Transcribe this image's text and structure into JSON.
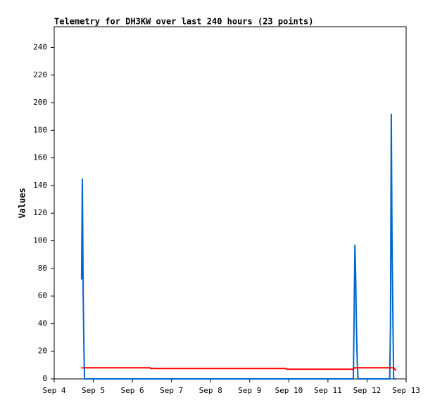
{
  "chart_data": {
    "type": "line",
    "title": "Telemetry for DH3KW over last 240 hours (23 points)",
    "y_label": "Values",
    "x": [
      4.7,
      4.72,
      4.74,
      4.755,
      4.775,
      6.45,
      6.47,
      9.93,
      9.95,
      11.65,
      11.67,
      11.69,
      11.71,
      11.73,
      11.75,
      11.77,
      12.58,
      12.6,
      12.62,
      12.64,
      12.66,
      12.68,
      12.74
    ],
    "series": [
      {
        "color": "#0066cc",
        "values": [
          72,
          145,
          64,
          32,
          0,
          0,
          0,
          0,
          0,
          0,
          48,
          97,
          73,
          36,
          12,
          0,
          0,
          40,
          192,
          96,
          48,
          0,
          0
        ]
      },
      {
        "color": "#ff0000",
        "values": [
          8,
          8,
          8,
          8,
          8,
          8,
          7.5,
          7.5,
          7,
          7,
          8,
          8,
          8,
          8,
          8,
          8,
          8,
          8,
          8,
          8,
          8,
          8,
          6
        ]
      }
    ],
    "xlim": [
      4,
      13
    ],
    "xticks": [
      {
        "value": 4,
        "label": "Sep 4"
      },
      {
        "value": 5,
        "label": "Sep 5"
      },
      {
        "value": 6,
        "label": "Sep 6"
      },
      {
        "value": 7,
        "label": "Sep 7"
      },
      {
        "value": 8,
        "label": "Sep 8"
      },
      {
        "value": 9,
        "label": "Sep 9"
      },
      {
        "value": 10,
        "label": "Sep 10"
      },
      {
        "value": 11,
        "label": "Sep 11"
      },
      {
        "value": 12,
        "label": "Sep 12"
      },
      {
        "value": 13,
        "label": "Sep 13"
      }
    ],
    "ylim": [
      0,
      255
    ],
    "yticks": [
      0,
      20,
      40,
      60,
      80,
      100,
      120,
      140,
      160,
      180,
      200,
      220,
      240
    ]
  }
}
